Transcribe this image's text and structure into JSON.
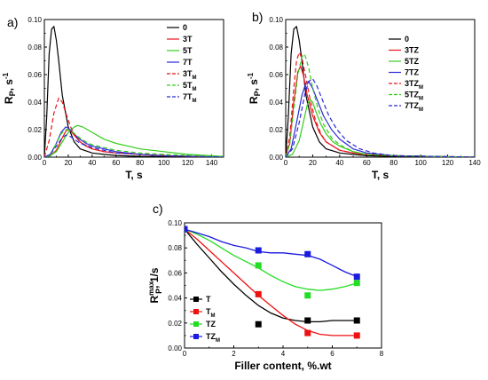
{
  "chart_data": [
    {
      "panel": "a)",
      "type": "line",
      "xlabel": "T, s",
      "ylabel": "R",
      "ylabel_sub": "P",
      "ylabel_suffix": ", s",
      "ylabel_sup": "-1",
      "xlim": [
        0,
        150
      ],
      "ylim": [
        0,
        0.1
      ],
      "xticks": [
        "0",
        "20",
        "40",
        "60",
        "80",
        "100",
        "120",
        "140"
      ],
      "yticks": [
        "0.00",
        "0.02",
        "0.04",
        "0.06",
        "0.08",
        "0.10"
      ],
      "legend_position": "top-right",
      "series": [
        {
          "name": "0",
          "color": "#000000",
          "dash": false,
          "x": [
            0,
            2,
            4,
            6,
            8,
            10,
            12,
            15,
            20,
            25,
            30,
            40,
            50,
            60,
            80,
            100,
            150
          ],
          "y": [
            0,
            0.03,
            0.075,
            0.093,
            0.095,
            0.085,
            0.07,
            0.045,
            0.022,
            0.011,
            0.006,
            0.003,
            0.002,
            0.0012,
            0.0006,
            0.0003,
            0
          ]
        },
        {
          "name": "3T",
          "color": "#e8141c",
          "dash": false,
          "x": [
            0,
            5,
            10,
            15,
            18,
            20,
            22,
            25,
            30,
            35,
            40,
            50,
            60,
            80,
            100,
            150
          ],
          "y": [
            0,
            0.001,
            0.005,
            0.014,
            0.019,
            0.02,
            0.019,
            0.016,
            0.011,
            0.008,
            0.006,
            0.004,
            0.003,
            0.002,
            0.001,
            0
          ]
        },
        {
          "name": "5T",
          "color": "#33cc1a",
          "dash": false,
          "x": [
            0,
            5,
            10,
            15,
            20,
            25,
            28,
            32,
            40,
            50,
            60,
            70,
            80,
            100,
            120,
            150
          ],
          "y": [
            0,
            0.001,
            0.004,
            0.011,
            0.018,
            0.022,
            0.023,
            0.022,
            0.018,
            0.013,
            0.01,
            0.008,
            0.006,
            0.004,
            0.002,
            0.0005
          ]
        },
        {
          "name": "7T",
          "color": "#2a2ad4",
          "dash": false,
          "x": [
            0,
            5,
            10,
            14,
            18,
            20,
            24,
            28,
            35,
            40,
            50,
            60,
            80,
            100,
            150
          ],
          "y": [
            0,
            0.002,
            0.01,
            0.018,
            0.022,
            0.021,
            0.018,
            0.014,
            0.01,
            0.008,
            0.006,
            0.004,
            0.002,
            0.001,
            0
          ]
        },
        {
          "name": "3T_M",
          "color": "#e8141c",
          "dash": true,
          "x": [
            0,
            4,
            8,
            12,
            15,
            18,
            22,
            26,
            30,
            40,
            50,
            60,
            80,
            100,
            150
          ],
          "y": [
            0,
            0.012,
            0.032,
            0.043,
            0.04,
            0.032,
            0.022,
            0.015,
            0.011,
            0.006,
            0.004,
            0.003,
            0.002,
            0.001,
            0
          ]
        },
        {
          "name": "5T_M",
          "color": "#33cc1a",
          "dash": true,
          "x": [
            0,
            5,
            10,
            14,
            18,
            20,
            24,
            28,
            35,
            40,
            50,
            60,
            80,
            100,
            150
          ],
          "y": [
            0,
            0.002,
            0.01,
            0.017,
            0.02,
            0.02,
            0.018,
            0.015,
            0.011,
            0.009,
            0.007,
            0.005,
            0.003,
            0.002,
            0
          ]
        },
        {
          "name": "7T_M",
          "color": "#2a2ad4",
          "dash": true,
          "x": [
            0,
            5,
            10,
            15,
            18,
            20,
            25,
            30,
            40,
            50,
            60,
            80,
            100,
            150
          ],
          "y": [
            0,
            0.002,
            0.008,
            0.014,
            0.016,
            0.016,
            0.013,
            0.01,
            0.007,
            0.005,
            0.003,
            0.002,
            0.001,
            0
          ]
        }
      ]
    },
    {
      "panel": "b)",
      "type": "line",
      "xlabel": "T, s",
      "ylabel": "R",
      "ylabel_sub": "P",
      "ylabel_suffix": ", s",
      "ylabel_sup": "-1",
      "xlim": [
        0,
        140
      ],
      "ylim": [
        0,
        0.1
      ],
      "xticks": [
        "0",
        "20",
        "40",
        "60",
        "80",
        "100",
        "120",
        "140"
      ],
      "yticks": [
        "0.00",
        "0.02",
        "0.04",
        "0.06",
        "0.08",
        "0.10"
      ],
      "legend_position": "top-right",
      "series": [
        {
          "name": "0",
          "color": "#000000",
          "dash": false,
          "x": [
            0,
            2,
            4,
            6,
            8,
            10,
            12,
            15,
            20,
            25,
            30,
            40,
            50,
            60,
            80,
            140
          ],
          "y": [
            0,
            0.03,
            0.075,
            0.093,
            0.095,
            0.085,
            0.07,
            0.045,
            0.022,
            0.011,
            0.006,
            0.003,
            0.002,
            0.001,
            0.0005,
            0
          ]
        },
        {
          "name": "3TZ",
          "color": "#e8141c",
          "dash": false,
          "x": [
            0,
            3,
            6,
            9,
            11,
            13,
            16,
            20,
            25,
            30,
            40,
            50,
            60,
            80,
            140
          ],
          "y": [
            0,
            0.01,
            0.04,
            0.062,
            0.066,
            0.06,
            0.045,
            0.03,
            0.018,
            0.011,
            0.005,
            0.003,
            0.002,
            0.001,
            0
          ]
        },
        {
          "name": "5TZ",
          "color": "#33cc1a",
          "dash": false,
          "x": [
            0,
            5,
            10,
            13,
            16,
            18,
            20,
            22,
            26,
            30,
            35,
            40,
            50,
            60,
            80,
            140
          ],
          "y": [
            0,
            0.002,
            0.012,
            0.025,
            0.038,
            0.042,
            0.04,
            0.034,
            0.024,
            0.017,
            0.011,
            0.008,
            0.004,
            0.002,
            0.001,
            0
          ]
        },
        {
          "name": "7TZ",
          "color": "#2a2ad4",
          "dash": false,
          "x": [
            0,
            4,
            8,
            12,
            15,
            17,
            20,
            24,
            28,
            34,
            40,
            50,
            60,
            80,
            140
          ],
          "y": [
            0,
            0.006,
            0.025,
            0.045,
            0.054,
            0.055,
            0.05,
            0.04,
            0.03,
            0.02,
            0.013,
            0.006,
            0.003,
            0.001,
            0
          ]
        },
        {
          "name": "3TZ_M",
          "color": "#e8141c",
          "dash": true,
          "x": [
            0,
            3,
            6,
            8,
            10,
            12,
            15,
            18,
            22,
            26,
            30,
            40,
            50,
            60,
            80,
            140
          ],
          "y": [
            0,
            0.015,
            0.05,
            0.07,
            0.076,
            0.072,
            0.058,
            0.042,
            0.027,
            0.017,
            0.011,
            0.005,
            0.003,
            0.002,
            0.001,
            0
          ]
        },
        {
          "name": "5TZ_M",
          "color": "#33cc1a",
          "dash": true,
          "x": [
            0,
            3,
            6,
            9,
            12,
            14,
            17,
            20,
            24,
            28,
            34,
            40,
            50,
            60,
            80,
            140
          ],
          "y": [
            0,
            0.01,
            0.035,
            0.06,
            0.073,
            0.075,
            0.065,
            0.05,
            0.035,
            0.024,
            0.014,
            0.009,
            0.004,
            0.002,
            0.001,
            0
          ]
        },
        {
          "name": "7TZ_M",
          "color": "#2a2ad4",
          "dash": true,
          "x": [
            0,
            5,
            10,
            14,
            17,
            20,
            23,
            27,
            32,
            38,
            45,
            55,
            65,
            80,
            140
          ],
          "y": [
            0,
            0.006,
            0.025,
            0.045,
            0.055,
            0.057,
            0.052,
            0.042,
            0.03,
            0.02,
            0.012,
            0.006,
            0.003,
            0.001,
            0
          ]
        }
      ]
    },
    {
      "panel": "c)",
      "type": "scatter",
      "xlabel": "Filler content, %.wt",
      "ylabel": "R",
      "ylabel_sub": "P",
      "ylabel_sup": "max",
      "ylabel_suffix": ", 1/s",
      "xlim": [
        0,
        8
      ],
      "ylim": [
        0,
        0.1
      ],
      "xticks": [
        "0",
        "2",
        "4",
        "6",
        "8"
      ],
      "yticks": [
        "0.00",
        "0.02",
        "0.04",
        "0.06",
        "0.08",
        "0.10"
      ],
      "legend_position": "bottom-left",
      "series": [
        {
          "name": "T",
          "color": "#000000",
          "x": [
            0,
            3,
            5,
            7
          ],
          "y": [
            0.095,
            0.019,
            0.022,
            0.022
          ],
          "fit_x": [
            0,
            0.5,
            1,
            1.5,
            2,
            2.5,
            3,
            3.5,
            4,
            4.5,
            5,
            5.5,
            6,
            6.5,
            7
          ],
          "fit_y": [
            0.095,
            0.083,
            0.072,
            0.061,
            0.051,
            0.042,
            0.034,
            0.028,
            0.024,
            0.022,
            0.021,
            0.021,
            0.022,
            0.022,
            0.022
          ]
        },
        {
          "name": "T_M",
          "color": "#ee1111",
          "x": [
            0,
            3,
            5,
            7
          ],
          "y": [
            0.095,
            0.043,
            0.012,
            0.01
          ],
          "fit_x": [
            0,
            0.5,
            1,
            1.5,
            2,
            2.5,
            3,
            3.5,
            4,
            4.5,
            5,
            5.5,
            6,
            6.5,
            7
          ],
          "fit_y": [
            0.095,
            0.087,
            0.078,
            0.069,
            0.06,
            0.051,
            0.042,
            0.034,
            0.026,
            0.019,
            0.014,
            0.011,
            0.01,
            0.01,
            0.01
          ]
        },
        {
          "name": "TZ",
          "color": "#22dd22",
          "x": [
            0,
            3,
            5,
            7
          ],
          "y": [
            0.095,
            0.066,
            0.042,
            0.052
          ],
          "fit_x": [
            0,
            0.5,
            1,
            1.5,
            2,
            2.5,
            3,
            3.5,
            4,
            4.5,
            5,
            5.5,
            6,
            6.5,
            7
          ],
          "fit_y": [
            0.095,
            0.091,
            0.086,
            0.08,
            0.074,
            0.069,
            0.064,
            0.058,
            0.053,
            0.049,
            0.047,
            0.046,
            0.047,
            0.049,
            0.052
          ]
        },
        {
          "name": "TZ_M",
          "color": "#1a1ae0",
          "x": [
            0,
            3,
            5,
            7
          ],
          "y": [
            0.095,
            0.078,
            0.075,
            0.057
          ],
          "fit_x": [
            0,
            0.5,
            1,
            1.5,
            2,
            2.5,
            3,
            3.5,
            4,
            4.5,
            5,
            5.5,
            6,
            6.5,
            7
          ],
          "fit_y": [
            0.095,
            0.092,
            0.089,
            0.085,
            0.082,
            0.08,
            0.077,
            0.076,
            0.076,
            0.075,
            0.074,
            0.071,
            0.066,
            0.061,
            0.057
          ]
        }
      ]
    }
  ]
}
